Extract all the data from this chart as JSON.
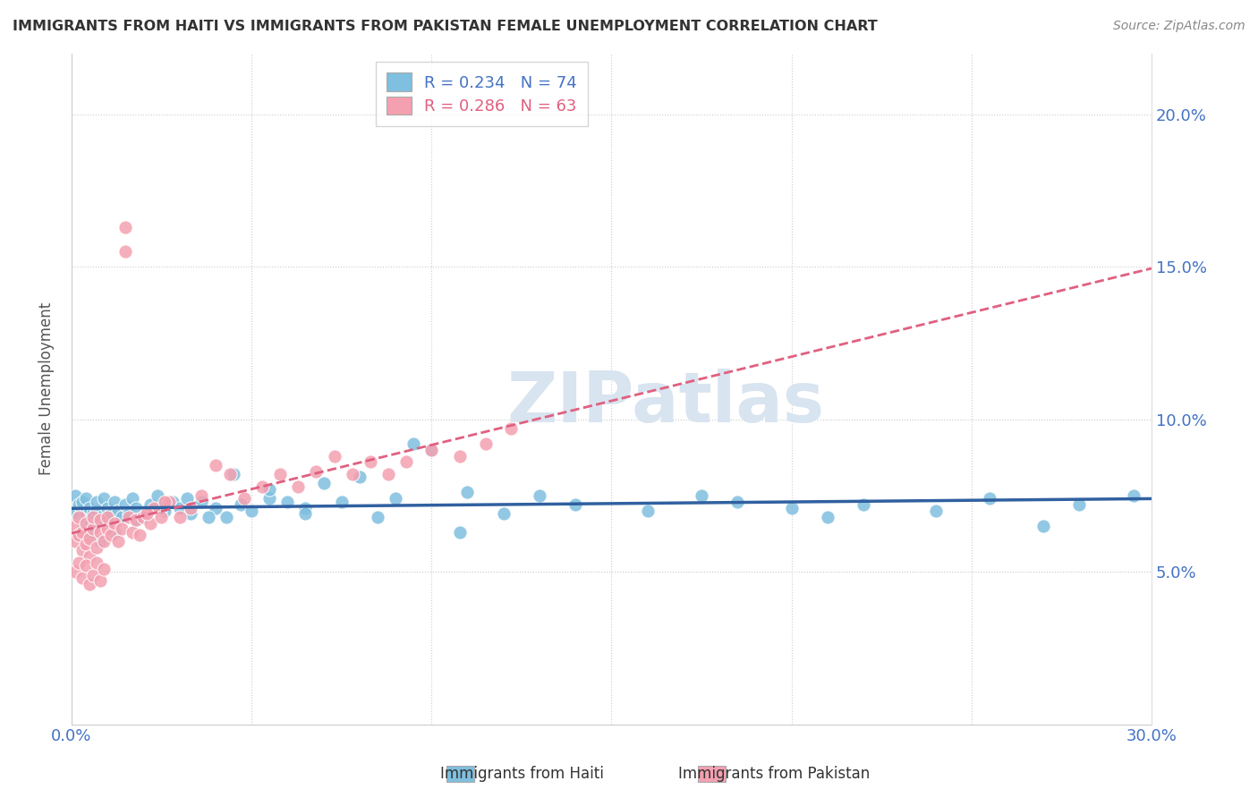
{
  "title": "IMMIGRANTS FROM HAITI VS IMMIGRANTS FROM PAKISTAN FEMALE UNEMPLOYMENT CORRELATION CHART",
  "source": "Source: ZipAtlas.com",
  "ylabel": "Female Unemployment",
  "xlim": [
    0.0,
    0.3
  ],
  "ylim": [
    0.0,
    0.22
  ],
  "haiti_color": "#7fbfdf",
  "pakistan_color": "#f4a0b0",
  "haiti_line_color": "#3060a0",
  "pakistan_line_color": "#e06080",
  "haiti_R": 0.234,
  "haiti_N": 74,
  "pakistan_R": 0.286,
  "pakistan_N": 63,
  "watermark": "ZIPatlas",
  "haiti_x": [
    0.001,
    0.001,
    0.002,
    0.002,
    0.003,
    0.003,
    0.004,
    0.004,
    0.005,
    0.005,
    0.006,
    0.006,
    0.007,
    0.007,
    0.008,
    0.009,
    0.01,
    0.01,
    0.011,
    0.012,
    0.013,
    0.014,
    0.015,
    0.016,
    0.017,
    0.018,
    0.02,
    0.022,
    0.024,
    0.026,
    0.028,
    0.03,
    0.033,
    0.036,
    0.04,
    0.043,
    0.047,
    0.05,
    0.055,
    0.06,
    0.065,
    0.07,
    0.08,
    0.09,
    0.1,
    0.11,
    0.12,
    0.14,
    0.16,
    0.175,
    0.185,
    0.2,
    0.21,
    0.22,
    0.24,
    0.255,
    0.27,
    0.28,
    0.295,
    0.005,
    0.008,
    0.012,
    0.018,
    0.025,
    0.032,
    0.038,
    0.045,
    0.055,
    0.065,
    0.075,
    0.085,
    0.095,
    0.108,
    0.13
  ],
  "haiti_y": [
    0.07,
    0.075,
    0.068,
    0.072,
    0.066,
    0.073,
    0.069,
    0.074,
    0.067,
    0.071,
    0.065,
    0.069,
    0.07,
    0.073,
    0.068,
    0.074,
    0.067,
    0.071,
    0.069,
    0.073,
    0.07,
    0.068,
    0.072,
    0.069,
    0.074,
    0.071,
    0.068,
    0.072,
    0.075,
    0.07,
    0.073,
    0.071,
    0.069,
    0.073,
    0.071,
    0.068,
    0.072,
    0.07,
    0.074,
    0.073,
    0.071,
    0.079,
    0.081,
    0.074,
    0.09,
    0.076,
    0.069,
    0.072,
    0.07,
    0.075,
    0.073,
    0.071,
    0.068,
    0.072,
    0.07,
    0.074,
    0.065,
    0.072,
    0.075,
    0.062,
    0.06,
    0.063,
    0.067,
    0.071,
    0.074,
    0.068,
    0.082,
    0.077,
    0.069,
    0.073,
    0.068,
    0.092,
    0.063,
    0.075
  ],
  "pakistan_x": [
    0.001,
    0.001,
    0.002,
    0.002,
    0.003,
    0.003,
    0.004,
    0.004,
    0.005,
    0.005,
    0.006,
    0.006,
    0.007,
    0.008,
    0.008,
    0.009,
    0.01,
    0.01,
    0.011,
    0.012,
    0.013,
    0.014,
    0.015,
    0.015,
    0.016,
    0.017,
    0.018,
    0.019,
    0.02,
    0.022,
    0.023,
    0.025,
    0.027,
    0.03,
    0.033,
    0.036,
    0.04,
    0.044,
    0.048,
    0.053,
    0.058,
    0.063,
    0.068,
    0.073,
    0.078,
    0.083,
    0.088,
    0.093,
    0.1,
    0.108,
    0.115,
    0.122,
    0.001,
    0.002,
    0.003,
    0.004,
    0.005,
    0.006,
    0.007,
    0.008,
    0.009,
    0.021,
    0.026
  ],
  "pakistan_y": [
    0.06,
    0.065,
    0.062,
    0.068,
    0.057,
    0.063,
    0.059,
    0.066,
    0.055,
    0.061,
    0.064,
    0.068,
    0.058,
    0.063,
    0.067,
    0.06,
    0.064,
    0.068,
    0.062,
    0.066,
    0.06,
    0.064,
    0.155,
    0.163,
    0.068,
    0.063,
    0.067,
    0.062,
    0.068,
    0.066,
    0.071,
    0.068,
    0.073,
    0.068,
    0.071,
    0.075,
    0.085,
    0.082,
    0.074,
    0.078,
    0.082,
    0.078,
    0.083,
    0.088,
    0.082,
    0.086,
    0.082,
    0.086,
    0.09,
    0.088,
    0.092,
    0.097,
    0.05,
    0.053,
    0.048,
    0.052,
    0.046,
    0.049,
    0.053,
    0.047,
    0.051,
    0.069,
    0.073
  ]
}
